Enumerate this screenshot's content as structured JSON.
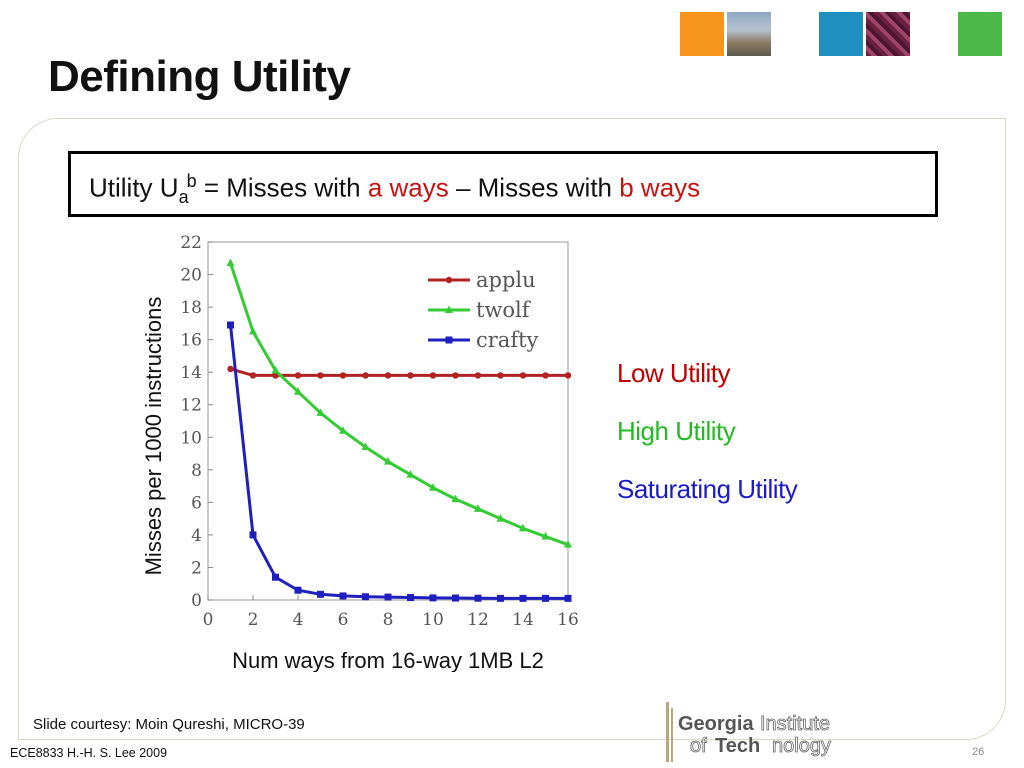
{
  "slide": {
    "title": "Defining Utility",
    "courtesy": "Slide courtesy: Moin Qureshi, MICRO-39",
    "footer": "ECE8833  H.-H. S. Lee  2009",
    "page_number": "26",
    "logo_text_line1_bold": "Georgia",
    "logo_text_line1_light": "Institute",
    "logo_text_line2_light": "of",
    "logo_text_line2_bold": "Tech",
    "logo_text_line2_light2": "nology"
  },
  "formula": {
    "prefix": "Utility U",
    "sub": "a",
    "sup": "b",
    "mid1": " = Misses with ",
    "red1": "a ways",
    "mid2": " – Misses with ",
    "red2": "b ways"
  },
  "annotations": [
    {
      "text": "Low Utility",
      "color": "#c00000"
    },
    {
      "text": "High Utility",
      "color": "#22bb22"
    },
    {
      "text": "Saturating Utility",
      "color": "#1a1acc"
    }
  ],
  "colors": {
    "applu": "#b22222",
    "twolf": "#33cc33",
    "crafty": "#1f1fbf",
    "sq1": "#f7941d",
    "sq3": "#1f8fbf",
    "sq5": "#4cb848"
  },
  "chart_data": {
    "type": "line",
    "xlabel": "Num ways from 16-way 1MB L2",
    "ylabel": "Misses per 1000 instructions",
    "xlim": [
      0,
      16
    ],
    "ylim": [
      0,
      22
    ],
    "xticks": [
      0,
      2,
      4,
      6,
      8,
      10,
      12,
      14,
      16
    ],
    "yticks": [
      0,
      2,
      4,
      6,
      8,
      10,
      12,
      14,
      16,
      18,
      20,
      22
    ],
    "legend": "top-right",
    "grid": false,
    "x": [
      1,
      2,
      3,
      4,
      5,
      6,
      7,
      8,
      9,
      10,
      11,
      12,
      13,
      14,
      15,
      16
    ],
    "series": [
      {
        "name": "applu",
        "values": [
          14.2,
          13.8,
          13.8,
          13.8,
          13.8,
          13.8,
          13.8,
          13.8,
          13.8,
          13.8,
          13.8,
          13.8,
          13.8,
          13.8,
          13.8,
          13.8
        ]
      },
      {
        "name": "twolf",
        "values": [
          20.7,
          16.5,
          14.1,
          12.8,
          11.5,
          10.4,
          9.4,
          8.5,
          7.7,
          6.9,
          6.2,
          5.6,
          5.0,
          4.4,
          3.9,
          3.4
        ]
      },
      {
        "name": "crafty",
        "values": [
          16.9,
          4.0,
          1.4,
          0.6,
          0.35,
          0.25,
          0.2,
          0.18,
          0.15,
          0.13,
          0.12,
          0.11,
          0.1,
          0.1,
          0.1,
          0.1
        ]
      }
    ]
  }
}
